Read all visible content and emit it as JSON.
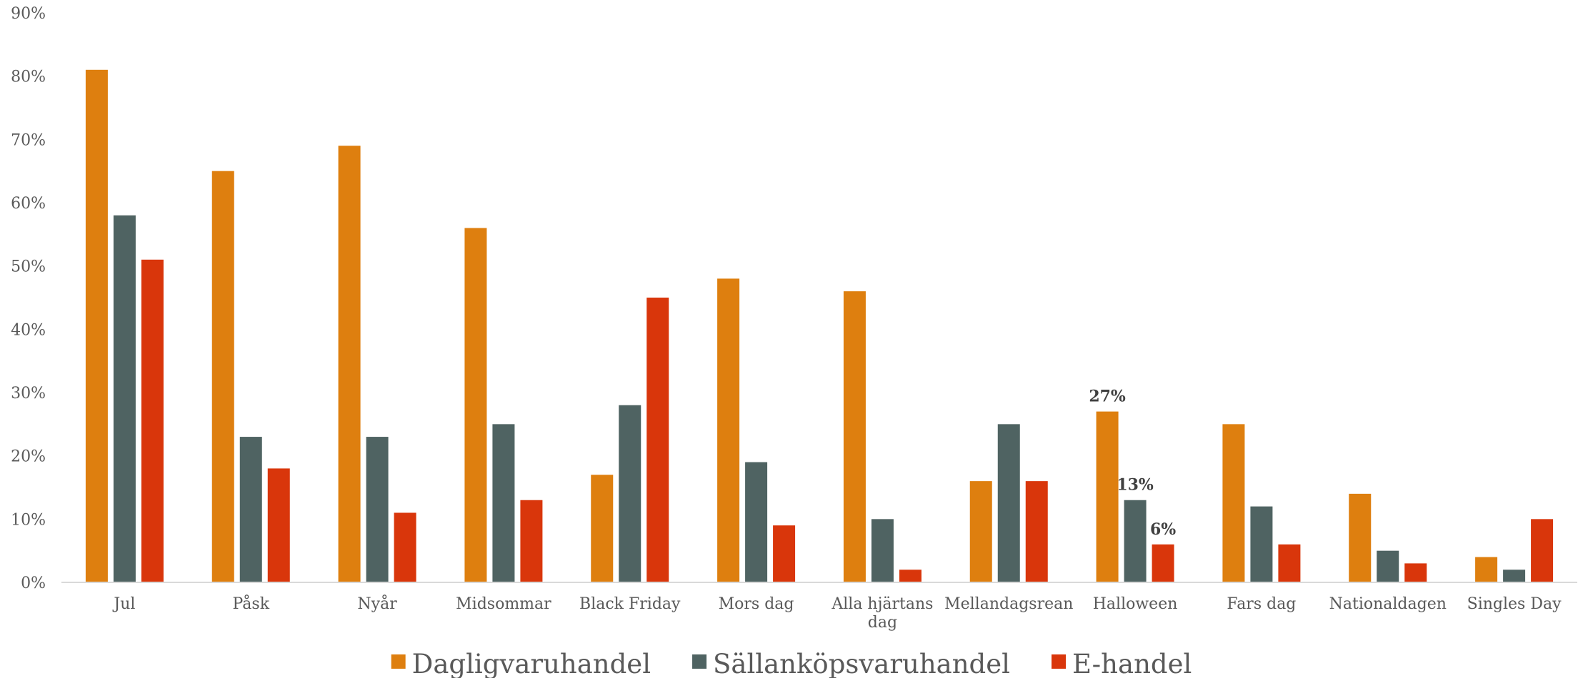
{
  "chart_data": {
    "type": "bar",
    "title": "",
    "xlabel": "",
    "ylabel": "",
    "ylim": [
      0,
      90
    ],
    "yticks": [
      "0%",
      "10%",
      "20%",
      "30%",
      "40%",
      "50%",
      "60%",
      "70%",
      "80%",
      "90%"
    ],
    "grid": false,
    "legend_position": "bottom",
    "categories": [
      [
        "Jul"
      ],
      [
        "Påsk"
      ],
      [
        "Nyår"
      ],
      [
        "Midsommar"
      ],
      [
        "Black Friday"
      ],
      [
        "Mors dag"
      ],
      [
        "Alla hjärtans",
        "dag"
      ],
      [
        "Mellandagsrean"
      ],
      [
        "Halloween"
      ],
      [
        "Fars dag"
      ],
      [
        "Nationaldagen"
      ],
      [
        "Singles Day"
      ]
    ],
    "series": [
      {
        "name": "Dagligvaruhandel",
        "color": "#DE7F0F",
        "values": [
          81,
          65,
          69,
          56,
          17,
          48,
          46,
          16,
          27,
          25,
          14,
          4
        ]
      },
      {
        "name": "Sällanköpsvaruhandel",
        "color": "#4F6362",
        "values": [
          58,
          23,
          23,
          25,
          28,
          19,
          10,
          25,
          13,
          12,
          5,
          2
        ]
      },
      {
        "name": "E-handel",
        "color": "#D9360B",
        "values": [
          51,
          18,
          11,
          13,
          45,
          9,
          2,
          16,
          6,
          6,
          3,
          10
        ]
      }
    ],
    "data_labels": [
      {
        "series": 0,
        "category": 8,
        "text": "27%"
      },
      {
        "series": 1,
        "category": 8,
        "text": "13%"
      },
      {
        "series": 2,
        "category": 8,
        "text": "6%"
      }
    ]
  }
}
